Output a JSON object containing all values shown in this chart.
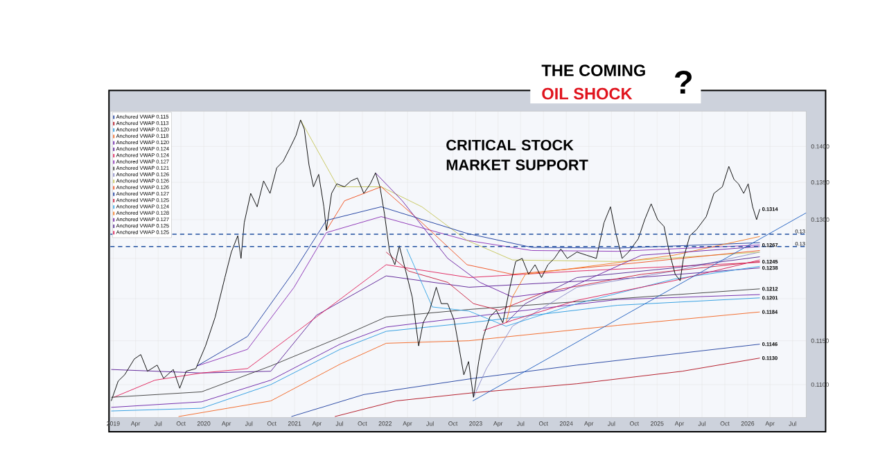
{
  "chart_data": {
    "type": "line",
    "title": "THE COMING",
    "subtitle": "OIL SHOCK",
    "log": "y",
    "grid": true,
    "legend": "top left",
    "marker": "none",
    "line_style": "solid",
    "xlim": [
      "2018-12-20",
      "2026-08-25"
    ],
    "ylim": [
      0.1064,
      0.1451
    ],
    "xticks": [
      {
        "value": "2019-01",
        "label": "2019"
      },
      {
        "value": "2019-04",
        "label": "Apr"
      },
      {
        "value": "2019-07",
        "label": "Jul"
      },
      {
        "value": "2019-10",
        "label": "Oct"
      },
      {
        "value": "2020-01",
        "label": "2020"
      },
      {
        "value": "2020-04",
        "label": "Apr"
      },
      {
        "value": "2020-07",
        "label": "Jul"
      },
      {
        "value": "2020-10",
        "label": "Oct"
      },
      {
        "value": "2021-01",
        "label": "2021"
      },
      {
        "value": "2021-04",
        "label": "Apr"
      },
      {
        "value": "2021-07",
        "label": "Jul"
      },
      {
        "value": "2021-10",
        "label": "Oct"
      },
      {
        "value": "2022-01",
        "label": "2022"
      },
      {
        "value": "2022-04",
        "label": "Apr"
      },
      {
        "value": "2022-07",
        "label": "Jul"
      },
      {
        "value": "2022-10",
        "label": "Oct"
      },
      {
        "value": "2023-01",
        "label": "2023"
      },
      {
        "value": "2023-04",
        "label": "Apr"
      },
      {
        "value": "2023-07",
        "label": "Jul"
      },
      {
        "value": "2023-10",
        "label": "Oct"
      },
      {
        "value": "2024-01",
        "label": "2024"
      },
      {
        "value": "2024-04",
        "label": "Apr"
      },
      {
        "value": "2024-07",
        "label": "Jul"
      },
      {
        "value": "2024-10",
        "label": "Oct"
      },
      {
        "value": "2025-01",
        "label": "2025"
      },
      {
        "value": "2025-04",
        "label": "Apr"
      },
      {
        "value": "2025-07",
        "label": "Jul"
      },
      {
        "value": "2025-10",
        "label": "Oct"
      },
      {
        "value": "2026-01",
        "label": "2026"
      },
      {
        "value": "2026-04",
        "label": "Apr"
      },
      {
        "value": "2026-07",
        "label": "Jul"
      }
    ],
    "yticks": [
      {
        "value": 0.11,
        "label": "0.1100"
      },
      {
        "value": 0.115,
        "label": "0.1150"
      },
      {
        "value": 0.12,
        "label": null
      },
      {
        "value": 0.125,
        "label": null
      },
      {
        "value": 0.13,
        "label": "0.1300"
      },
      {
        "value": 0.135,
        "label": "0.1350"
      },
      {
        "value": 0.14,
        "label": "0.1400"
      }
    ],
    "series": [
      {
        "name": "Anchored VWAP 0.115",
        "color": "#1f3f9f",
        "x": [
          "2020-12-19",
          "2021-10-07",
          "2022-12-23",
          "2024-02-13",
          "2026-02-19"
        ],
        "values": [
          0.1065,
          0.1089,
          0.1107,
          0.1122,
          0.1146
        ]
      },
      {
        "name": "Anchored VWAP 0.113",
        "color": "#b0101e",
        "x": [
          "2021-06-12",
          "2022-02-14",
          "2022-12-23",
          "2024-02-13",
          "2025-04-12",
          "2026-02-19"
        ],
        "values": [
          0.1065,
          0.1082,
          0.1091,
          0.1101,
          0.1115,
          0.113
        ]
      },
      {
        "name": "Anchored VWAP 0.120",
        "color": "#2a9be0",
        "x": [
          "2018-12-24",
          "2019-12-23",
          "2020-09-27",
          "2021-07-03",
          "2022-01-05",
          "2022-12-05",
          "2024-07-26",
          "2026-02-19"
        ],
        "values": [
          0.1071,
          0.1074,
          0.11,
          0.114,
          0.1161,
          0.1171,
          0.1192,
          0.1201
        ]
      },
      {
        "name": "Anchored VWAP 0.118",
        "color": "#f26522",
        "x": [
          "2019-09-21",
          "2020-09-27",
          "2021-07-03",
          "2022-01-05",
          "2022-12-05",
          "2024-07-26",
          "2026-02-19"
        ],
        "values": [
          0.1065,
          0.1082,
          0.1123,
          0.1147,
          0.115,
          0.1168,
          0.1184
        ]
      },
      {
        "name": "Anchored VWAP 0.120",
        "color": "#6a22a8",
        "x": [
          "2018-12-24",
          "2019-12-23",
          "2020-09-27",
          "2021-07-03",
          "2022-01-05",
          "2022-12-05",
          "2024-07-26",
          "2026-02-19"
        ],
        "values": [
          0.1075,
          0.1081,
          0.1105,
          0.1146,
          0.1166,
          0.1178,
          0.1199,
          0.1205
        ]
      },
      {
        "name": "Anchored VWAP 0.124",
        "color": "#5b1f96",
        "x": [
          "2018-12-24",
          "2019-12-23",
          "2020-09-27",
          "2021-03-30",
          "2022-01-05",
          "2022-12-05",
          "2024-07-26",
          "2026-02-19"
        ],
        "values": [
          0.1117,
          0.1113,
          0.1115,
          0.118,
          0.1228,
          0.1214,
          0.1224,
          0.1238
        ]
      },
      {
        "name": "Anchored VWAP 0.124",
        "color": "#e0205a",
        "x": [
          "2019-01-03",
          "2019-06-18",
          "2019-12-23",
          "2020-06-25",
          "2021-03-30",
          "2022-01-05",
          "2022-12-05",
          "2024-02-13",
          "2026-02-19"
        ],
        "values": [
          0.1086,
          0.1105,
          0.1113,
          0.1118,
          0.1178,
          0.1242,
          0.1226,
          0.1234,
          0.1245
        ]
      },
      {
        "name": "Anchored VWAP 0.127",
        "color": "#8a2fb5",
        "x": [
          "2019-12-05",
          "2020-06-25",
          "2020-12-30",
          "2021-05-09",
          "2021-12-16",
          "2022-11-27",
          "2023-08-15",
          "2024-07-26",
          "2026-02-19"
        ],
        "values": [
          0.1121,
          0.114,
          0.1214,
          0.1283,
          0.1304,
          0.1273,
          0.126,
          0.1259,
          0.1267
        ]
      },
      {
        "name": "Anchored VWAP 0.121",
        "color": "#3c3c3c",
        "x": [
          "2018-12-24",
          "2019-12-23",
          "2020-09-27",
          "2021-07-03",
          "2022-01-05",
          "2022-12-05",
          "2024-07-26",
          "2026-02-19"
        ],
        "values": [
          0.1086,
          0.1092,
          0.1121,
          0.1154,
          0.1178,
          0.1187,
          0.12,
          0.1212
        ]
      },
      {
        "name": "Anchored VWAP 0.126",
        "color": "#8c8cc8",
        "x": [
          "2022-12-23",
          "2023-02-13",
          "2023-05-29",
          "2024-02-13",
          "2025-03-09",
          "2026-02-19"
        ],
        "values": [
          0.1086,
          0.1118,
          0.1167,
          0.1214,
          0.1234,
          0.1258
        ]
      },
      {
        "name": "Anchored VWAP 0.126",
        "color": "#c6c65a",
        "x": [
          "2021-01-25",
          "2021-06-24",
          "2021-12-16",
          "2022-05-29",
          "2022-11-27",
          "2023-05-29",
          "2024-07-26",
          "2026-02-19"
        ],
        "values": [
          0.1438,
          0.1344,
          0.1344,
          0.1317,
          0.1273,
          0.1248,
          0.1246,
          0.1258
        ]
      },
      {
        "name": "Anchored VWAP 0.126",
        "color": "#f0501e",
        "x": [
          "2021-05-09",
          "2021-07-21",
          "2021-12-16",
          "2022-05-29",
          "2022-11-27",
          "2023-05-29",
          "2024-07-26",
          "2026-02-19"
        ],
        "values": [
          0.1286,
          0.1325,
          0.1344,
          0.1296,
          0.1242,
          0.123,
          0.1242,
          0.126
        ]
      },
      {
        "name": "Anchored VWAP 0.127",
        "color": "#1a3a9e",
        "x": [
          "2019-12-05",
          "2020-06-25",
          "2020-12-30",
          "2021-05-09",
          "2021-12-16",
          "2022-11-27",
          "2023-08-15",
          "2024-07-26",
          "2026-02-19"
        ],
        "values": [
          0.1121,
          0.1155,
          0.1234,
          0.1299,
          0.1317,
          0.1282,
          0.1264,
          0.1263,
          0.127
        ]
      },
      {
        "name": "Anchored VWAP 0.125",
        "color": "#c81e3c",
        "x": [
          "2022-01-05",
          "2022-04-06",
          "2022-09-10",
          "2022-12-23",
          "2023-04-06",
          "2023-10-06",
          "2024-10-30",
          "2026-02-19"
        ],
        "values": [
          0.1258,
          0.1234,
          0.122,
          0.1194,
          0.1186,
          0.1208,
          0.123,
          0.1246
        ]
      },
      {
        "name": "Anchored VWAP 0.124",
        "color": "#35a5e5",
        "x": [
          "2022-03-29",
          "2022-07-10",
          "2022-12-05",
          "2023-05-03",
          "2024-02-13",
          "2025-03-09",
          "2026-02-19"
        ],
        "values": [
          0.1262,
          0.119,
          0.1185,
          0.1167,
          0.1194,
          0.1224,
          0.124
        ]
      },
      {
        "name": "Anchored VWAP 0.128",
        "color": "#f47a20",
        "x": [
          "2023-05-03",
          "2023-05-29",
          "2023-07-20",
          "2024-02-13",
          "2025-03-09",
          "2026-02-19"
        ],
        "values": [
          0.1171,
          0.1202,
          0.123,
          0.1238,
          0.1254,
          0.1278
        ]
      },
      {
        "name": "Anchored VWAP 0.127",
        "color": "#6c1fa3",
        "x": [
          "2021-11-23",
          "2022-03-11",
          "2022-09-10",
          "2023-01-18",
          "2023-05-29",
          "2023-12-22",
          "2024-10-30",
          "2026-02-19"
        ],
        "values": [
          0.1363,
          0.1325,
          0.125,
          0.122,
          0.1202,
          0.121,
          0.1254,
          0.1265
        ]
      },
      {
        "name": "Anchored VWAP 0.125",
        "color": "#55288f",
        "x": [
          "2023-05-03",
          "2023-07-20",
          "2024-02-13",
          "2025-03-09",
          "2026-02-19"
        ],
        "values": [
          0.1171,
          0.1194,
          0.1226,
          0.1238,
          0.1252
        ]
      },
      {
        "name": "Anchored VWAP 0.125",
        "color": "#d81b55",
        "x": [
          "2023-02-01",
          "2023-05-29",
          "2024-02-13",
          "2025-03-09",
          "2026-02-19"
        ],
        "values": [
          0.1162,
          0.1174,
          0.1198,
          0.1222,
          0.1248
        ]
      },
      {
        "color": "#1f5fc0",
        "x": [
          "2022-12-20",
          "2026-08-25"
        ],
        "values": [
          0.1082,
          0.1309
        ]
      },
      {
        "color": "#000000",
        "x": [
          "2018-12-24",
          "2019-01-21",
          "2019-02-16",
          "2019-03-27",
          "2019-04-22",
          "2019-05-19",
          "2019-06-27",
          "2019-07-23",
          "2019-08-31",
          "2019-09-26",
          "2019-10-22",
          "2019-11-30",
          "2020-01-08",
          "2020-02-16",
          "2020-03-26",
          "2020-04-21",
          "2020-05-17",
          "2020-05-30",
          "2020-06-12",
          "2020-07-08",
          "2020-08-03",
          "2020-08-29",
          "2020-09-24",
          "2020-10-21",
          "2020-11-16",
          "2020-12-12",
          "2021-01-07",
          "2021-01-25",
          "2021-02-09",
          "2021-02-28",
          "2021-03-18",
          "2021-04-08",
          "2021-04-29",
          "2021-05-09",
          "2021-05-30",
          "2021-06-20",
          "2021-07-21",
          "2021-08-16",
          "2021-09-11",
          "2021-10-07",
          "2021-11-02",
          "2021-11-23",
          "2021-12-11",
          "2021-12-29",
          "2022-01-19",
          "2022-02-09",
          "2022-02-27",
          "2022-03-25",
          "2022-04-20",
          "2022-05-16",
          "2022-06-03",
          "2022-06-29",
          "2022-07-26",
          "2022-08-15",
          "2022-09-10",
          "2022-10-06",
          "2022-10-27",
          "2022-11-14",
          "2022-12-03",
          "2022-12-23",
          "2023-01-13",
          "2023-02-01",
          "2023-02-27",
          "2023-03-25",
          "2023-04-20",
          "2023-05-16",
          "2023-06-11",
          "2023-07-07",
          "2023-08-02",
          "2023-08-28",
          "2023-09-23",
          "2023-10-19",
          "2023-11-14",
          "2023-12-10",
          "2024-01-05",
          "2024-02-13",
          "2024-03-23",
          "2024-05-01",
          "2024-06-01",
          "2024-06-27",
          "2024-07-18",
          "2024-08-13",
          "2024-09-08",
          "2024-10-17",
          "2024-11-12",
          "2024-12-08",
          "2025-01-03",
          "2025-01-29",
          "2025-02-19",
          "2025-03-15",
          "2025-04-04",
          "2025-04-17",
          "2025-05-13",
          "2025-06-09",
          "2025-07-18",
          "2025-08-18",
          "2025-09-21",
          "2025-10-17",
          "2025-11-07",
          "2025-11-25",
          "2025-12-16",
          "2026-01-03",
          "2026-01-21",
          "2026-02-06",
          "2026-02-19"
        ],
        "values": [
          0.1082,
          0.1104,
          0.1111,
          0.1129,
          0.1134,
          0.1115,
          0.1122,
          0.1107,
          0.1117,
          0.1096,
          0.1115,
          0.1118,
          0.1144,
          0.1178,
          0.1226,
          0.1258,
          0.1279,
          0.125,
          0.1296,
          0.1335,
          0.1317,
          0.1352,
          0.1335,
          0.137,
          0.1379,
          0.1397,
          0.1416,
          0.1438,
          0.1425,
          0.1374,
          0.1344,
          0.1361,
          0.1317,
          0.1286,
          0.1335,
          0.1348,
          0.1344,
          0.1352,
          0.1356,
          0.1335,
          0.1348,
          0.1363,
          0.1344,
          0.1308,
          0.1258,
          0.1242,
          0.1266,
          0.1234,
          0.1202,
          0.1144,
          0.1171,
          0.1186,
          0.1214,
          0.1194,
          0.1194,
          0.1174,
          0.114,
          0.1111,
          0.1126,
          0.1086,
          0.1126,
          0.1155,
          0.1178,
          0.1186,
          0.1171,
          0.121,
          0.1246,
          0.125,
          0.123,
          0.1242,
          0.1226,
          0.1242,
          0.125,
          0.1262,
          0.125,
          0.1258,
          0.1254,
          0.125,
          0.1296,
          0.1317,
          0.1283,
          0.125,
          0.1258,
          0.1275,
          0.13,
          0.1321,
          0.13,
          0.1291,
          0.1258,
          0.123,
          0.1222,
          0.125,
          0.1279,
          0.1287,
          0.1304,
          0.1335,
          0.1344,
          0.1372,
          0.1354,
          0.1348,
          0.1335,
          0.1348,
          0.1317,
          0.13,
          0.1314
        ]
      }
    ],
    "ref_lines": [
      {
        "axis": "y",
        "value": 0.1281,
        "label": "0.13",
        "color": "#1f4fa0",
        "line_style": "dashed"
      },
      {
        "axis": "y",
        "value": 0.1265,
        "label": "0.13",
        "color": "#1f4fa0",
        "line_style": "dashed"
      }
    ],
    "annotations": [
      "?",
      "CRITICAL STOCK MARKET SUPPORT",
      {
        "text": "0.1314",
        "x": "2026-02-19",
        "y": 0.1314
      },
      {
        "text": "0.1267",
        "x": "2026-02-19",
        "y": 0.1267
      },
      {
        "text": "0.1245",
        "x": "2026-02-19",
        "y": 0.1245
      },
      {
        "text": "0.1238",
        "x": "2026-02-19",
        "y": 0.1238
      },
      {
        "text": "0.1212",
        "x": "2026-02-19",
        "y": 0.1212
      },
      {
        "text": "0.1201",
        "x": "2026-02-19",
        "y": 0.1201
      },
      {
        "text": "0.1184",
        "x": "2026-02-19",
        "y": 0.1184
      },
      {
        "text": "0.1146",
        "x": "2026-02-19",
        "y": 0.1146
      },
      {
        "text": "0.1130",
        "x": "2026-02-19",
        "y": 0.113
      }
    ]
  }
}
